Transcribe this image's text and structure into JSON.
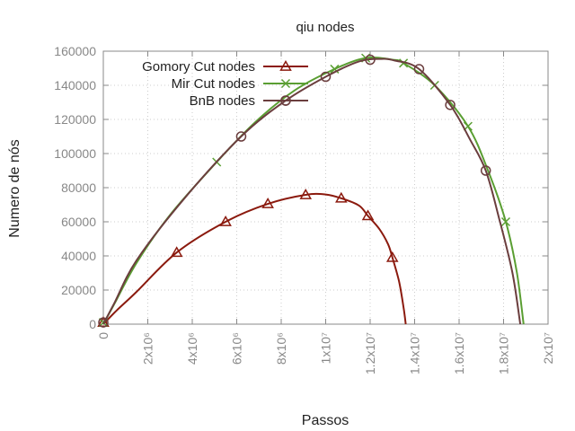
{
  "chart_data": {
    "type": "line",
    "title": "qiu nodes",
    "xlabel": "Passos",
    "ylabel": "Numero de nós",
    "xlim": [
      0,
      20000000
    ],
    "ylim": [
      0,
      160000
    ],
    "grid": true,
    "legend_position": "top-left",
    "x_ticks": [
      {
        "value": 0,
        "label": "0"
      },
      {
        "value": 2000000,
        "label": "2x10⁶"
      },
      {
        "value": 4000000,
        "label": "4x10⁶"
      },
      {
        "value": 6000000,
        "label": "6x10⁶"
      },
      {
        "value": 8000000,
        "label": "8x10⁶"
      },
      {
        "value": 10000000,
        "label": "1x10⁷"
      },
      {
        "value": 12000000,
        "label": "1.2x10⁷"
      },
      {
        "value": 14000000,
        "label": "1.4x10⁷"
      },
      {
        "value": 16000000,
        "label": "1.6x10⁷"
      },
      {
        "value": 18000000,
        "label": "1.8x10⁷"
      },
      {
        "value": 20000000,
        "label": "2x10⁷"
      }
    ],
    "y_ticks": [
      {
        "value": 0,
        "label": "0"
      },
      {
        "value": 20000,
        "label": "20000"
      },
      {
        "value": 40000,
        "label": "40000"
      },
      {
        "value": 60000,
        "label": "60000"
      },
      {
        "value": 80000,
        "label": "80000"
      },
      {
        "value": 100000,
        "label": "100000"
      },
      {
        "value": 120000,
        "label": "120000"
      },
      {
        "value": 140000,
        "label": "140000"
      },
      {
        "value": 160000,
        "label": "160000"
      }
    ],
    "series": [
      {
        "name": "Gomory Cut nodes",
        "color": "#8b1a0e",
        "marker": "triangle",
        "curve": [
          [
            0,
            0
          ],
          [
            600000,
            8000
          ],
          [
            1500000,
            19000
          ],
          [
            3300000,
            42000
          ],
          [
            5500000,
            60000
          ],
          [
            7400000,
            70500
          ],
          [
            9100000,
            75800
          ],
          [
            10000000,
            76000
          ],
          [
            10700000,
            73800
          ],
          [
            11500000,
            69500
          ],
          [
            11900000,
            63500
          ],
          [
            12400000,
            56000
          ],
          [
            12800000,
            47000
          ],
          [
            13000000,
            39000
          ],
          [
            13300000,
            25000
          ],
          [
            13500000,
            10000
          ],
          [
            13600000,
            0
          ]
        ],
        "markers": [
          [
            0,
            1000
          ],
          [
            3300000,
            42000
          ],
          [
            5500000,
            60000
          ],
          [
            7400000,
            70500
          ],
          [
            9100000,
            75800
          ],
          [
            10700000,
            73800
          ],
          [
            11900000,
            63500
          ],
          [
            13000000,
            39000
          ]
        ]
      },
      {
        "name": "Mir Cut nodes",
        "color": "#5a9e32",
        "marker": "x",
        "curve": [
          [
            0,
            0
          ],
          [
            500000,
            12000
          ],
          [
            1500000,
            36000
          ],
          [
            3000000,
            64000
          ],
          [
            5100000,
            95000
          ],
          [
            6800000,
            118000
          ],
          [
            8600000,
            137000
          ],
          [
            10400000,
            149500
          ],
          [
            11800000,
            156000
          ],
          [
            13000000,
            155000
          ],
          [
            13500000,
            153000
          ],
          [
            14900000,
            140000
          ],
          [
            16400000,
            116000
          ],
          [
            17300000,
            90000
          ],
          [
            18100000,
            60000
          ],
          [
            18600000,
            30000
          ],
          [
            18900000,
            0
          ]
        ],
        "markers": [
          [
            0,
            1000
          ],
          [
            5100000,
            95000
          ],
          [
            10400000,
            149500
          ],
          [
            11800000,
            156000
          ],
          [
            13500000,
            153000
          ],
          [
            14900000,
            140000
          ],
          [
            16400000,
            116000
          ],
          [
            18100000,
            60000
          ]
        ]
      },
      {
        "name": "BnB nodes",
        "color": "#6b3e3e",
        "marker": "circle",
        "curve": [
          [
            0,
            0
          ],
          [
            500000,
            12500
          ],
          [
            1500000,
            37500
          ],
          [
            3600000,
            73000
          ],
          [
            6200000,
            110000
          ],
          [
            8200000,
            131000
          ],
          [
            10000000,
            145000
          ],
          [
            11500000,
            154000
          ],
          [
            12500000,
            155500
          ],
          [
            13100000,
            154500
          ],
          [
            14200000,
            149500
          ],
          [
            15600000,
            128500
          ],
          [
            16500000,
            108000
          ],
          [
            17200000,
            90000
          ],
          [
            17800000,
            62000
          ],
          [
            18400000,
            30000
          ],
          [
            18750000,
            0
          ]
        ],
        "markers": [
          [
            0,
            1000
          ],
          [
            6200000,
            110000
          ],
          [
            8200000,
            131000
          ],
          [
            10000000,
            145000
          ],
          [
            12000000,
            155000
          ],
          [
            14200000,
            149500
          ],
          [
            15600000,
            128500
          ],
          [
            17200000,
            90000
          ]
        ]
      }
    ]
  }
}
